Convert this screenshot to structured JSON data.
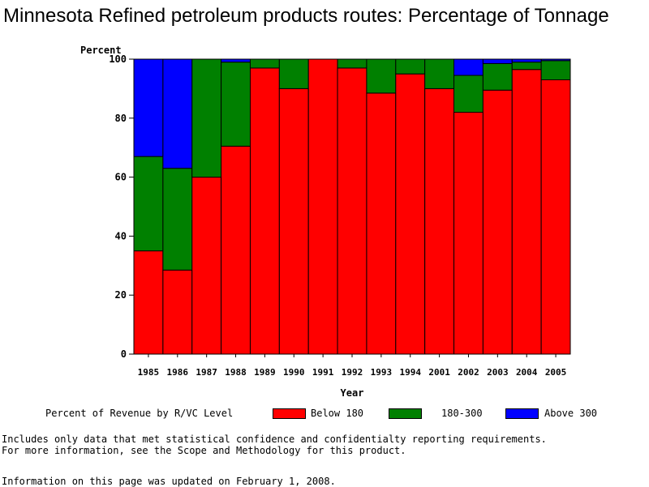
{
  "title": "Minnesota Refined petroleum products routes: Percentage of Tonnage",
  "chart_data": {
    "type": "bar",
    "stacked": true,
    "categories": [
      "1985",
      "1986",
      "1987",
      "1988",
      "1989",
      "1990",
      "1991",
      "1992",
      "1993",
      "1994",
      "2001",
      "2002",
      "2003",
      "2004",
      "2005"
    ],
    "series": [
      {
        "name": "Below 180",
        "color": "#ff0000",
        "values": [
          35,
          28.5,
          60,
          70.5,
          97,
          90,
          100,
          97,
          88.5,
          95,
          90,
          82,
          89.5,
          96.5,
          93
        ]
      },
      {
        "name": "180-300",
        "color": "#008000",
        "values": [
          32,
          34.5,
          40,
          28.5,
          3,
          10,
          0,
          3,
          11.5,
          5,
          10,
          12.5,
          9,
          2.5,
          6.5
        ]
      },
      {
        "name": "Above 300",
        "color": "#0000ff",
        "values": [
          33,
          37,
          0,
          1,
          0,
          0,
          0,
          0,
          0,
          0,
          0,
          5.5,
          1.5,
          1,
          0.5
        ]
      }
    ],
    "ylabel": "Percent",
    "xlabel": "Year",
    "ylim": [
      0,
      100
    ],
    "yticks": [
      0,
      20,
      40,
      60,
      80,
      100
    ],
    "grid": false
  },
  "legend": {
    "label": "Percent of Revenue by R/VC Level",
    "items": [
      {
        "label": "Below 180",
        "color": "#ff0000"
      },
      {
        "label": "180-300",
        "color": "#008000"
      },
      {
        "label": "Above 300",
        "color": "#0000ff"
      }
    ]
  },
  "notes": {
    "line1": "Includes only data that met statistical confidence and confidentialty reporting requirements.",
    "line2": "For more information, see the Scope and Methodology for this product.",
    "updated": "Information on this page was updated on February 1, 2008."
  }
}
